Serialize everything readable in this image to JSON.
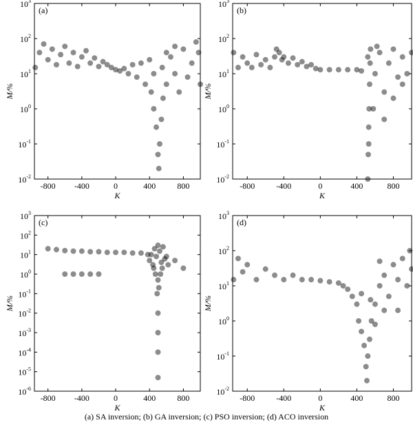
{
  "chart_data": [
    {
      "type": "scatter",
      "panel_label": "(a)",
      "x_label": "K",
      "y_label": "M/%",
      "color": "#000000",
      "log_y": true,
      "xlim": [
        -960,
        1000
      ],
      "xticks": [
        -800,
        -400,
        0,
        400,
        800
      ],
      "ylim": [
        0.01,
        1000
      ],
      "yticks": [
        {
          "value": 0.01,
          "label": "10",
          "exponent": "-2"
        },
        {
          "value": 0.1,
          "label": "10",
          "exponent": "-1"
        },
        {
          "value": 1,
          "label": "10",
          "exponent": "0"
        },
        {
          "value": 10,
          "label": "10",
          "exponent": "1"
        },
        {
          "value": 100,
          "label": "10",
          "exponent": "2"
        },
        {
          "value": 1000,
          "label": "10",
          "exponent": "3"
        }
      ],
      "x": [
        -950,
        -900,
        -850,
        -800,
        -750,
        -700,
        -650,
        -600,
        -550,
        -500,
        -450,
        -400,
        -350,
        -300,
        -250,
        -200,
        -150,
        -100,
        -50,
        0,
        50,
        100,
        150,
        200,
        250,
        300,
        350,
        400,
        420,
        450,
        480,
        500,
        510,
        520,
        540,
        560,
        600,
        650,
        700,
        750,
        800,
        850,
        900,
        950,
        1000,
        980,
        700,
        600,
        450,
        550
      ],
      "values": [
        15,
        40,
        70,
        25,
        50,
        18,
        35,
        60,
        20,
        40,
        16,
        30,
        45,
        20,
        28,
        16,
        22,
        18,
        15,
        13,
        12,
        14,
        10,
        18,
        8,
        20,
        5,
        25,
        3,
        1,
        0.3,
        0.05,
        0.02,
        0.1,
        0.5,
        2,
        5,
        30,
        10,
        3,
        50,
        8,
        20,
        80,
        5,
        40,
        60,
        40,
        10,
        15
      ]
    },
    {
      "type": "scatter",
      "panel_label": "(b)",
      "x_label": "K",
      "y_label": "M/%",
      "color": "#000000",
      "log_y": true,
      "xlim": [
        -960,
        1000
      ],
      "xticks": [
        -800,
        -400,
        0,
        400,
        800
      ],
      "ylim": [
        0.01,
        1000
      ],
      "yticks": [
        {
          "value": 0.01,
          "label": "10",
          "exponent": "-2"
        },
        {
          "value": 0.1,
          "label": "10",
          "exponent": "-1"
        },
        {
          "value": 1,
          "label": "10",
          "exponent": "0"
        },
        {
          "value": 10,
          "label": "10",
          "exponent": "1"
        },
        {
          "value": 100,
          "label": "10",
          "exponent": "2"
        },
        {
          "value": 1000,
          "label": "10",
          "exponent": "3"
        }
      ],
      "x": [
        -950,
        -900,
        -850,
        -800,
        -750,
        -700,
        -650,
        -600,
        -550,
        -500,
        -480,
        -450,
        -420,
        -400,
        -350,
        -300,
        -250,
        -200,
        -150,
        -100,
        -50,
        0,
        100,
        200,
        300,
        400,
        450,
        520,
        525,
        530,
        535,
        540,
        545,
        550,
        600,
        650,
        700,
        750,
        800,
        850,
        900,
        950,
        1000,
        580,
        620,
        700,
        800,
        900,
        520,
        530
      ],
      "values": [
        40,
        15,
        30,
        20,
        15,
        35,
        18,
        25,
        15,
        30,
        50,
        40,
        25,
        30,
        20,
        28,
        18,
        22,
        16,
        18,
        14,
        13,
        13,
        13,
        13,
        13,
        12,
        0.01,
        0.05,
        0.3,
        1,
        5,
        20,
        50,
        10,
        40,
        3,
        20,
        50,
        8,
        30,
        10,
        40,
        1,
        60,
        0.5,
        2,
        5,
        30,
        0.1
      ]
    },
    {
      "type": "scatter",
      "panel_label": "(c)",
      "x_label": "K",
      "y_label": "M/%",
      "color": "#000000",
      "log_y": true,
      "xlim": [
        -960,
        1000
      ],
      "xticks": [
        -800,
        -400,
        0,
        400,
        800
      ],
      "ylim": [
        1e-06,
        1000
      ],
      "yticks": [
        {
          "value": 1e-06,
          "label": "10",
          "exponent": "-6"
        },
        {
          "value": 1e-05,
          "label": "10",
          "exponent": "-5"
        },
        {
          "value": 0.0001,
          "label": "10",
          "exponent": "-4"
        },
        {
          "value": 0.001,
          "label": "10",
          "exponent": "-3"
        },
        {
          "value": 0.01,
          "label": "10",
          "exponent": "-2"
        },
        {
          "value": 0.1,
          "label": "10",
          "exponent": "-1"
        },
        {
          "value": 1,
          "label": "10",
          "exponent": "0"
        },
        {
          "value": 10,
          "label": "10",
          "exponent": "1"
        },
        {
          "value": 100,
          "label": "10",
          "exponent": "2"
        },
        {
          "value": 1000,
          "label": "10",
          "exponent": "3"
        }
      ],
      "x": [
        -800,
        -700,
        -600,
        -500,
        -400,
        -300,
        -200,
        -100,
        0,
        100,
        200,
        300,
        -600,
        -500,
        -400,
        -300,
        -200,
        400,
        420,
        440,
        460,
        480,
        500,
        520,
        540,
        560,
        580,
        600,
        500,
        510,
        490,
        500,
        500,
        500,
        500,
        450,
        550,
        470,
        530,
        620,
        380,
        700,
        800
      ],
      "values": [
        20,
        18,
        16,
        15,
        15,
        14,
        14,
        13,
        13,
        13,
        12,
        12,
        1,
        1,
        1,
        1,
        1,
        5,
        10,
        3,
        20,
        8,
        30,
        15,
        4,
        25,
        6,
        8,
        0.5,
        0.2,
        0.1,
        0.01,
        0.001,
        0.0001,
        5e-06,
        2,
        2,
        1,
        1,
        3,
        10,
        5,
        2
      ]
    },
    {
      "type": "scatter",
      "panel_label": "(d)",
      "x_label": "K",
      "y_label": "M/%",
      "color": "#000000",
      "log_y": true,
      "xlim": [
        -960,
        1000
      ],
      "xticks": [
        -800,
        -400,
        0,
        400,
        800
      ],
      "ylim": [
        0.01,
        1000
      ],
      "yticks": [
        {
          "value": 0.01,
          "label": "10",
          "exponent": "-2"
        },
        {
          "value": 0.1,
          "label": "10",
          "exponent": "-1"
        },
        {
          "value": 1,
          "label": "10",
          "exponent": "0"
        },
        {
          "value": 10,
          "label": "10",
          "exponent": "1"
        },
        {
          "value": 100,
          "label": "10",
          "exponent": "2"
        },
        {
          "value": 1000,
          "label": "10",
          "exponent": "3"
        }
      ],
      "x": [
        -950,
        -900,
        -850,
        -800,
        -700,
        -600,
        -500,
        -400,
        -300,
        -200,
        -100,
        0,
        100,
        200,
        250,
        300,
        350,
        400,
        420,
        450,
        480,
        500,
        510,
        520,
        540,
        560,
        600,
        650,
        700,
        750,
        800,
        850,
        900,
        950,
        1000,
        980,
        700,
        600,
        450,
        550,
        650,
        850
      ],
      "values": [
        15,
        60,
        25,
        40,
        15,
        30,
        20,
        15,
        20,
        15,
        15,
        14,
        13,
        12,
        10,
        8,
        5,
        3,
        1,
        0.5,
        0.2,
        0.05,
        0.02,
        0.1,
        0.3,
        1,
        3,
        10,
        20,
        5,
        40,
        15,
        60,
        10,
        30,
        100,
        2,
        0.8,
        6,
        4,
        50,
        2
      ]
    }
  ],
  "caption": "(a) SA inversion; (b) GA inversion; (c) PSO inversion; (d) ACO inversion"
}
